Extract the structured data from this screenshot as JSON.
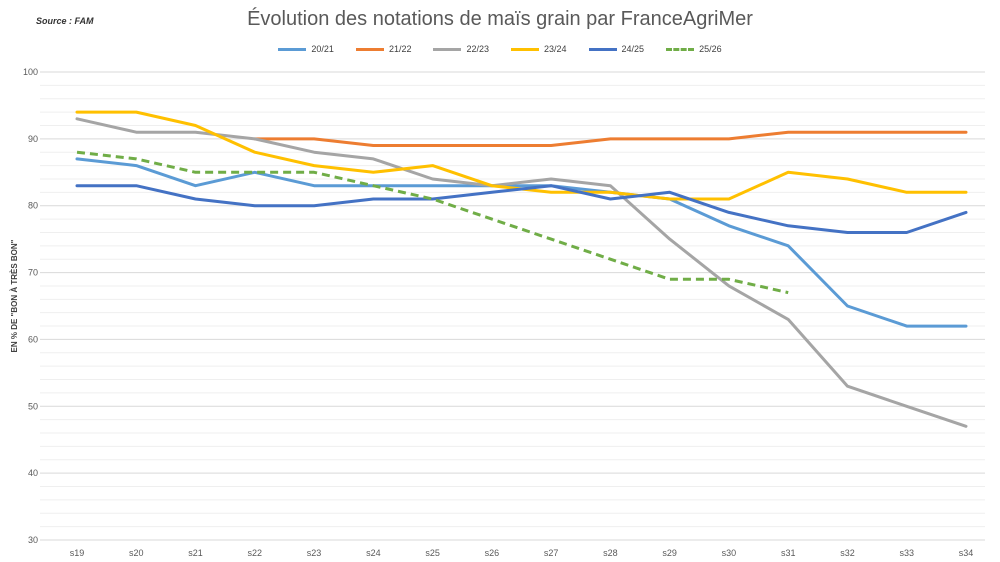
{
  "source": "Source : FAM",
  "chart_data": {
    "type": "line",
    "title": "Évolution des notations de maïs grain par FranceAgriMer",
    "xlabel": "",
    "ylabel": "EN % DE \"BON À TRÈS BON\"",
    "ylim": [
      30,
      100
    ],
    "yticks": [
      30,
      40,
      50,
      60,
      70,
      80,
      90,
      100
    ],
    "grid": true,
    "legend_position": "top",
    "categories": [
      "s19",
      "s20",
      "s21",
      "s22",
      "s23",
      "s24",
      "s25",
      "s26",
      "s27",
      "s28",
      "s29",
      "s30",
      "s31",
      "s32",
      "s33",
      "s34"
    ],
    "series": [
      {
        "name": "20/21",
        "color": "#5B9BD5",
        "dashed": false,
        "values": [
          87,
          86,
          83,
          85,
          83,
          83,
          83,
          83,
          83,
          82,
          81,
          77,
          74,
          65,
          62,
          62
        ]
      },
      {
        "name": "21/22",
        "color": "#ED7D31",
        "dashed": false,
        "values": [
          null,
          null,
          null,
          90,
          90,
          89,
          89,
          89,
          89,
          90,
          90,
          90,
          91,
          91,
          91,
          91
        ]
      },
      {
        "name": "22/23",
        "color": "#A5A5A5",
        "dashed": false,
        "values": [
          93,
          91,
          91,
          90,
          88,
          87,
          84,
          83,
          84,
          83,
          75,
          68,
          63,
          53,
          50,
          47
        ]
      },
      {
        "name": "23/24",
        "color": "#FFC000",
        "dashed": false,
        "values": [
          94,
          94,
          92,
          88,
          86,
          85,
          86,
          83,
          82,
          82,
          81,
          81,
          85,
          84,
          82,
          82
        ]
      },
      {
        "name": "24/25",
        "color": "#4472C4",
        "dashed": false,
        "values": [
          83,
          83,
          81,
          80,
          80,
          81,
          81,
          82,
          83,
          81,
          82,
          79,
          77,
          76,
          76,
          79
        ]
      },
      {
        "name": "25/26",
        "color": "#70AD47",
        "dashed": true,
        "values": [
          88,
          87,
          85,
          85,
          85,
          83,
          81,
          78,
          75,
          72,
          69,
          69,
          67,
          null,
          null,
          null
        ]
      }
    ]
  }
}
